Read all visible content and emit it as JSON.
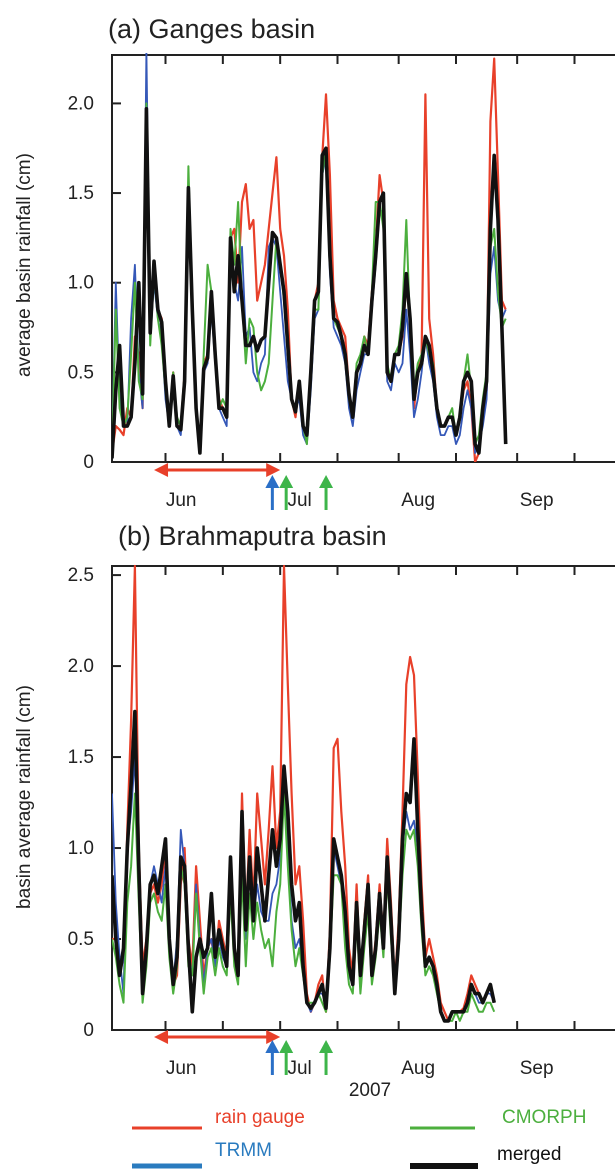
{
  "chart_data": [
    {
      "type": "line",
      "title": "(a)  Ganges basin",
      "ylabel": "average basin rainfall (cm)",
      "ylim": [
        0,
        2.27
      ],
      "yticks": [
        0,
        0.5,
        1.0,
        1.5,
        2.0
      ],
      "ytick_labels": [
        "0",
        "0.5",
        "1.0",
        "1.5",
        "2.0"
      ],
      "xlim": [
        "2007-05-18",
        "2007-09-30"
      ],
      "month_labels": [
        {
          "label": "Jun",
          "date": "2007-06-03"
        },
        {
          "label": "Jul",
          "date": "2007-07-04"
        },
        {
          "label": "Aug",
          "date": "2007-08-04"
        },
        {
          "label": "Sep",
          "date": "2007-09-04"
        }
      ],
      "x_start": "2007-05-18",
      "series": [
        {
          "name": "rain gauge",
          "color": "#e8402a",
          "width": 2.2,
          "values": [
            0.05,
            0.2,
            0.18,
            0.15,
            0.3,
            0.25,
            0.7,
            0.6,
            0.3,
            1.9,
            0.75,
            1.1,
            0.85,
            0.8,
            0.4,
            0.2,
            0.5,
            0.2,
            0.2,
            0.5,
            1.5,
            0.85,
            0.3,
            0.05,
            0.55,
            0.6,
            0.9,
            0.6,
            0.35,
            0.3,
            0.25,
            1.25,
            1.3,
            1.0,
            1.45,
            1.55,
            1.3,
            1.35,
            0.9,
            1.0,
            1.1,
            1.3,
            1.5,
            1.7,
            1.3,
            1.15,
            0.85,
            0.35,
            0.25,
            0.45,
            0.2,
            0.15,
            0.5,
            0.9,
            1.0,
            1.7,
            2.05,
            1.6,
            0.9,
            0.8,
            0.75,
            0.7,
            0.4,
            0.25,
            0.5,
            0.55,
            0.7,
            0.65,
            0.95,
            1.2,
            1.6,
            1.45,
            0.5,
            0.45,
            0.6,
            0.6,
            0.7,
            1.0,
            0.8,
            0.3,
            0.5,
            0.6,
            2.05,
            0.8,
            0.6,
            0.3,
            0.2,
            0.2,
            0.25,
            0.25,
            0.15,
            0.25,
            0.4,
            0.45,
            0.3,
            0.0,
            0.05,
            0.25,
            0.4,
            1.9,
            2.25,
            1.6,
            0.9,
            0.85
          ]
        },
        {
          "name": "TRMM",
          "color": "#3558b8",
          "width": 1.8,
          "values": [
            0.05,
            1.0,
            0.35,
            0.2,
            0.2,
            0.8,
            1.1,
            0.5,
            0.3,
            2.3,
            0.7,
            1.0,
            0.8,
            0.7,
            0.35,
            0.2,
            0.45,
            0.2,
            0.15,
            0.5,
            1.45,
            0.8,
            0.3,
            0.05,
            0.5,
            0.55,
            0.85,
            0.55,
            0.3,
            0.25,
            0.2,
            1.1,
            1.0,
            0.9,
            1.2,
            0.7,
            0.75,
            0.5,
            0.45,
            0.55,
            0.6,
            1.2,
            1.25,
            1.2,
            0.95,
            0.7,
            0.45,
            0.35,
            0.3,
            0.35,
            0.15,
            0.1,
            0.4,
            0.8,
            0.85,
            1.6,
            1.7,
            1.05,
            0.75,
            0.7,
            0.65,
            0.55,
            0.3,
            0.2,
            0.4,
            0.5,
            0.6,
            0.6,
            0.85,
            1.1,
            1.4,
            1.4,
            0.45,
            0.4,
            0.55,
            0.5,
            0.55,
            0.85,
            0.6,
            0.25,
            0.35,
            0.5,
            0.7,
            0.55,
            0.45,
            0.25,
            0.15,
            0.15,
            0.2,
            0.2,
            0.1,
            0.15,
            0.3,
            0.4,
            0.3,
            0.05,
            0.1,
            0.2,
            0.35,
            1.05,
            1.2,
            0.9,
            0.8,
            0.85
          ]
        },
        {
          "name": "CMORPH",
          "color": "#4caf3e",
          "width": 2.0,
          "values": [
            0.05,
            0.85,
            0.3,
            0.2,
            0.25,
            0.6,
            1.0,
            0.45,
            0.35,
            2.0,
            0.65,
            1.05,
            0.8,
            0.65,
            0.4,
            0.2,
            0.5,
            0.25,
            0.2,
            0.5,
            1.65,
            0.85,
            0.3,
            0.05,
            0.6,
            1.1,
            0.95,
            0.65,
            0.3,
            0.35,
            0.3,
            1.3,
            1.1,
            1.45,
            0.9,
            0.55,
            0.8,
            0.75,
            0.5,
            0.4,
            0.45,
            0.55,
            0.9,
            1.25,
            1.1,
            0.9,
            0.6,
            0.35,
            0.3,
            0.4,
            0.2,
            0.1,
            0.45,
            0.85,
            0.85,
            1.6,
            1.75,
            1.2,
            0.8,
            0.75,
            0.7,
            0.6,
            0.35,
            0.25,
            0.55,
            0.6,
            0.7,
            0.6,
            0.95,
            1.45,
            1.45,
            1.3,
            0.55,
            0.45,
            0.6,
            0.65,
            0.85,
            1.35,
            0.75,
            0.4,
            0.55,
            0.6,
            0.7,
            0.6,
            0.55,
            0.3,
            0.2,
            0.2,
            0.25,
            0.3,
            0.15,
            0.25,
            0.45,
            0.6,
            0.4,
            0.1,
            0.15,
            0.35,
            0.5,
            1.2,
            1.3,
            0.95,
            0.75,
            0.8
          ]
        },
        {
          "name": "merged",
          "color": "#111111",
          "width": 3.6,
          "values": [
            0.02,
            0.4,
            0.65,
            0.2,
            0.2,
            0.25,
            0.55,
            1.0,
            0.38,
            1.97,
            0.72,
            1.12,
            0.85,
            0.78,
            0.45,
            0.2,
            0.48,
            0.2,
            0.18,
            0.45,
            1.53,
            0.85,
            0.3,
            0.05,
            0.52,
            0.58,
            0.95,
            0.6,
            0.3,
            0.3,
            0.25,
            1.25,
            0.95,
            1.15,
            0.9,
            0.65,
            0.65,
            0.7,
            0.62,
            0.68,
            0.7,
            1.0,
            1.28,
            1.25,
            1.1,
            0.95,
            0.65,
            0.35,
            0.28,
            0.45,
            0.2,
            0.15,
            0.5,
            0.9,
            0.95,
            1.71,
            1.75,
            1.15,
            0.8,
            0.78,
            0.7,
            0.6,
            0.38,
            0.25,
            0.5,
            0.55,
            0.65,
            0.6,
            0.9,
            1.15,
            1.45,
            1.5,
            0.5,
            0.45,
            0.6,
            0.6,
            0.75,
            1.05,
            0.8,
            0.35,
            0.5,
            0.55,
            0.7,
            0.65,
            0.5,
            0.3,
            0.2,
            0.2,
            0.25,
            0.25,
            0.15,
            0.25,
            0.45,
            0.5,
            0.45,
            0.1,
            0.05,
            0.3,
            0.45,
            1.3,
            1.71,
            1.35,
            0.75,
            0.1
          ]
        }
      ],
      "markers": {
        "span": {
          "from": "2007-05-29",
          "to": "2007-07-01",
          "color": "#e8402a"
        },
        "arrows": [
          {
            "date": "2007-06-30",
            "color": "#2a6fc7"
          },
          {
            "date": "2007-07-01",
            "color": "#3db54a"
          },
          {
            "date": "2007-07-13",
            "color": "#3db54a"
          }
        ]
      }
    },
    {
      "type": "line",
      "title": "(b) Brahmaputra basin",
      "ylabel": "basin average  rainfall (cm)",
      "xlabel": "2007",
      "ylim": [
        0,
        2.55
      ],
      "yticks": [
        0,
        0.5,
        1.0,
        1.5,
        2.0,
        2.5
      ],
      "ytick_labels": [
        "0",
        "0.5",
        "1.0",
        "1.5",
        "2.0",
        "2.5"
      ],
      "xlim": [
        "2007-05-18",
        "2007-09-30"
      ],
      "month_labels": [
        {
          "label": "Jun",
          "date": "2007-06-03"
        },
        {
          "label": "Jul",
          "date": "2007-07-04"
        },
        {
          "label": "Aug",
          "date": "2007-08-04"
        },
        {
          "label": "Sep",
          "date": "2007-09-04"
        }
      ],
      "x_start": "2007-05-18",
      "series": [
        {
          "name": "rain gauge",
          "color": "#e8402a",
          "width": 2.2,
          "values": [
            0.5,
            0.5,
            0.3,
            0.4,
            1.1,
            1.7,
            2.55,
            1.0,
            0.35,
            0.5,
            0.75,
            0.8,
            0.7,
            0.8,
            1.0,
            0.5,
            0.25,
            0.3,
            0.8,
            1.0,
            0.5,
            0.35,
            0.9,
            0.6,
            0.3,
            0.45,
            0.5,
            0.35,
            0.6,
            0.5,
            0.4,
            0.9,
            0.4,
            0.3,
            1.3,
            0.6,
            1.1,
            0.7,
            1.3,
            1.05,
            0.8,
            1.1,
            1.45,
            1.0,
            1.2,
            2.55,
            1.9,
            1.3,
            0.8,
            0.9,
            0.6,
            0.2,
            0.1,
            0.15,
            0.25,
            0.3,
            0.1,
            0.55,
            1.55,
            1.6,
            1.2,
            0.9,
            0.45,
            0.3,
            0.8,
            0.3,
            0.6,
            0.85,
            0.3,
            0.5,
            0.8,
            0.5,
            1.05,
            0.7,
            0.25,
            0.6,
            1.2,
            1.9,
            2.05,
            1.95,
            1.4,
            0.8,
            0.4,
            0.5,
            0.4,
            0.3,
            0.15,
            0.1,
            0.05,
            0.1,
            0.1,
            0.1,
            0.12,
            0.2,
            0.3,
            0.25,
            0.2,
            0.15,
            0.2,
            0.25,
            0.15
          ]
        },
        {
          "name": "TRMM",
          "color": "#3558b8",
          "width": 1.8,
          "values": [
            1.3,
            0.7,
            0.4,
            0.2,
            1.0,
            1.2,
            1.5,
            0.8,
            0.2,
            0.4,
            0.8,
            0.9,
            0.8,
            0.7,
            0.9,
            0.45,
            0.25,
            0.5,
            1.1,
            0.9,
            0.4,
            0.3,
            0.8,
            0.5,
            0.25,
            0.45,
            0.5,
            0.35,
            0.5,
            0.4,
            0.35,
            0.8,
            0.4,
            0.3,
            1.0,
            0.5,
            0.9,
            0.6,
            0.8,
            0.65,
            0.6,
            0.6,
            0.75,
            0.8,
            0.95,
            1.4,
            1.0,
            0.6,
            0.45,
            0.5,
            0.35,
            0.15,
            0.1,
            0.15,
            0.2,
            0.2,
            0.15,
            0.45,
            1.0,
            0.9,
            0.8,
            0.5,
            0.3,
            0.25,
            0.7,
            0.25,
            0.5,
            0.7,
            0.3,
            0.45,
            0.7,
            0.45,
            0.9,
            0.55,
            0.2,
            0.5,
            1.0,
            1.2,
            1.1,
            1.15,
            1.0,
            0.6,
            0.35,
            0.4,
            0.35,
            0.25,
            0.1,
            0.05,
            0.05,
            0.1,
            0.1,
            0.1,
            0.1,
            0.15,
            0.25,
            0.2,
            0.15,
            0.15,
            0.2,
            0.2,
            0.15
          ]
        },
        {
          "name": "CMORPH",
          "color": "#4caf3e",
          "width": 2.0,
          "values": [
            0.5,
            0.4,
            0.25,
            0.15,
            0.7,
            0.9,
            1.3,
            0.7,
            0.15,
            0.35,
            0.7,
            0.75,
            0.65,
            0.6,
            0.8,
            0.4,
            0.2,
            0.35,
            0.9,
            0.8,
            0.35,
            0.3,
            0.75,
            0.45,
            0.2,
            0.4,
            0.45,
            0.3,
            0.45,
            0.35,
            0.3,
            0.75,
            0.35,
            0.25,
            0.85,
            0.35,
            0.75,
            0.5,
            0.7,
            0.55,
            0.45,
            0.5,
            0.35,
            0.65,
            0.8,
            1.3,
            0.9,
            0.55,
            0.35,
            0.45,
            0.3,
            0.15,
            0.15,
            0.15,
            0.2,
            0.15,
            0.1,
            0.4,
            0.85,
            0.85,
            0.8,
            0.45,
            0.25,
            0.2,
            0.6,
            0.2,
            0.45,
            0.65,
            0.25,
            0.4,
            0.65,
            0.4,
            0.85,
            0.5,
            0.2,
            0.45,
            0.85,
            1.1,
            1.05,
            1.1,
            0.9,
            0.55,
            0.3,
            0.35,
            0.3,
            0.2,
            0.1,
            0.05,
            0.05,
            0.05,
            0.1,
            0.05,
            0.1,
            0.1,
            0.2,
            0.15,
            0.1,
            0.1,
            0.15,
            0.15,
            0.1
          ]
        },
        {
          "name": "merged",
          "color": "#111111",
          "width": 3.6,
          "values": [
            0.85,
            0.5,
            0.3,
            0.45,
            1.0,
            1.35,
            1.75,
            0.9,
            0.2,
            0.45,
            0.8,
            0.85,
            0.75,
            0.9,
            1.05,
            0.5,
            0.25,
            0.4,
            0.95,
            0.9,
            0.45,
            0.1,
            0.4,
            0.5,
            0.4,
            0.45,
            0.75,
            0.4,
            0.55,
            0.45,
            0.35,
            0.95,
            0.45,
            0.3,
            1.2,
            0.55,
            0.95,
            0.6,
            1.0,
            0.8,
            0.6,
            0.85,
            1.1,
            0.9,
            1.05,
            1.45,
            1.2,
            0.8,
            0.6,
            0.7,
            0.35,
            0.15,
            0.12,
            0.15,
            0.2,
            0.25,
            0.12,
            0.45,
            1.05,
            0.95,
            0.85,
            0.65,
            0.35,
            0.25,
            0.7,
            0.3,
            0.55,
            0.8,
            0.3,
            0.45,
            0.75,
            0.45,
            0.95,
            0.6,
            0.2,
            0.5,
            1.05,
            1.3,
            1.25,
            1.6,
            1.1,
            0.65,
            0.35,
            0.4,
            0.35,
            0.25,
            0.1,
            0.05,
            0.05,
            0.1,
            0.1,
            0.1,
            0.1,
            0.15,
            0.25,
            0.2,
            0.2,
            0.15,
            0.2,
            0.25,
            0.15
          ]
        }
      ],
      "markers": {
        "span": {
          "from": "2007-05-29",
          "to": "2007-07-01",
          "color": "#e8402a"
        },
        "arrows": [
          {
            "date": "2007-06-30",
            "color": "#2a6fc7"
          },
          {
            "date": "2007-07-01",
            "color": "#3db54a"
          },
          {
            "date": "2007-07-13",
            "color": "#3db54a"
          }
        ]
      }
    }
  ],
  "legend": [
    {
      "name": "rain gauge",
      "color": "#e8402a"
    },
    {
      "name": "CMORPH",
      "color": "#4caf3e"
    },
    {
      "name": "TRMM",
      "color": "#2a7bbf"
    },
    {
      "name": "merged",
      "color": "#111111"
    }
  ]
}
